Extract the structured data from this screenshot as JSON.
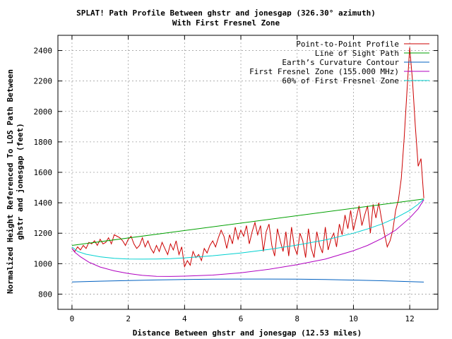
{
  "chart_data": {
    "type": "line",
    "title": "SPLAT! Path Profile Between ghstr and jonesgap (326.30° azimuth)",
    "subtitle": "With First Fresnel Zone",
    "xlabel": "Distance Between ghstr and jonesgap (12.53 miles)",
    "ylabel_line1": "Normalized Height Referenced To LOS Path Between",
    "ylabel_line2": "ghstr and jonesgap (feet)",
    "xlim": [
      -0.5,
      13.0
    ],
    "ylim": [
      700,
      2500
    ],
    "xticks": [
      0,
      2,
      4,
      6,
      8,
      10,
      12
    ],
    "yticks": [
      800,
      1000,
      1200,
      1400,
      1600,
      1800,
      2000,
      2200,
      2400
    ],
    "grid": true,
    "legend_position": "top-right",
    "series": [
      {
        "name": "Point-to-Point Profile",
        "color": "#cc0000",
        "x": [
          0,
          0.1,
          0.2,
          0.3,
          0.4,
          0.5,
          0.6,
          0.7,
          0.8,
          0.9,
          1.0,
          1.1,
          1.2,
          1.3,
          1.4,
          1.5,
          1.6,
          1.7,
          1.8,
          1.9,
          2.0,
          2.1,
          2.2,
          2.3,
          2.4,
          2.5,
          2.6,
          2.7,
          2.8,
          2.9,
          3.0,
          3.1,
          3.2,
          3.3,
          3.4,
          3.5,
          3.6,
          3.7,
          3.8,
          3.9,
          4.0,
          4.1,
          4.2,
          4.3,
          4.4,
          4.5,
          4.6,
          4.7,
          4.8,
          4.9,
          5.0,
          5.1,
          5.2,
          5.3,
          5.4,
          5.5,
          5.6,
          5.7,
          5.8,
          5.9,
          6.0,
          6.1,
          6.2,
          6.3,
          6.4,
          6.5,
          6.6,
          6.7,
          6.8,
          6.9,
          7.0,
          7.1,
          7.2,
          7.3,
          7.4,
          7.5,
          7.6,
          7.7,
          7.8,
          7.9,
          8.0,
          8.1,
          8.2,
          8.3,
          8.4,
          8.5,
          8.6,
          8.7,
          8.8,
          8.9,
          9.0,
          9.1,
          9.2,
          9.3,
          9.4,
          9.5,
          9.6,
          9.7,
          9.8,
          9.9,
          10.0,
          10.1,
          10.2,
          10.3,
          10.4,
          10.5,
          10.6,
          10.7,
          10.8,
          10.9,
          11.0,
          11.1,
          11.2,
          11.3,
          11.4,
          11.5,
          11.6,
          11.7,
          11.8,
          11.9,
          12.0,
          12.1,
          12.2,
          12.3,
          12.4,
          12.5
        ],
        "y": [
          1100,
          1080,
          1110,
          1090,
          1120,
          1100,
          1140,
          1130,
          1150,
          1120,
          1160,
          1130,
          1140,
          1170,
          1130,
          1190,
          1180,
          1170,
          1150,
          1120,
          1160,
          1180,
          1130,
          1100,
          1120,
          1170,
          1110,
          1150,
          1100,
          1070,
          1120,
          1080,
          1140,
          1100,
          1060,
          1130,
          1090,
          1150,
          1060,
          1110,
          980,
          1020,
          990,
          1080,
          1040,
          1060,
          1020,
          1100,
          1070,
          1120,
          1150,
          1110,
          1170,
          1220,
          1180,
          1100,
          1190,
          1130,
          1240,
          1160,
          1220,
          1180,
          1250,
          1130,
          1210,
          1270,
          1190,
          1250,
          1080,
          1210,
          1260,
          1120,
          1050,
          1230,
          1150,
          1080,
          1210,
          1050,
          1240,
          1110,
          1060,
          1200,
          1150,
          1040,
          1230,
          1100,
          1040,
          1210,
          1120,
          1070,
          1240,
          1090,
          1160,
          1200,
          1110,
          1260,
          1190,
          1320,
          1230,
          1350,
          1220,
          1300,
          1380,
          1250,
          1320,
          1380,
          1200,
          1390,
          1300,
          1400,
          1290,
          1200,
          1110,
          1150,
          1220,
          1350,
          1420,
          1560,
          1820,
          2130,
          2420,
          2200,
          1900,
          1640,
          1690,
          1430
        ]
      },
      {
        "name": "Line of Sight Path",
        "color": "#00a000",
        "x": [
          0,
          12.5
        ],
        "y": [
          1120,
          1425
        ]
      },
      {
        "name": "Earth’s Curvature Contour",
        "color": "#0060c0",
        "x": [
          0,
          1,
          2,
          3,
          4,
          5,
          6,
          7,
          8,
          9,
          10,
          11,
          12,
          12.5
        ],
        "y": [
          880,
          885,
          889,
          893,
          896,
          898,
          899,
          899,
          898,
          896,
          892,
          888,
          882,
          879
        ]
      },
      {
        "name": "First Fresnel Zone (155.000 MHz)",
        "color": "#b000c0",
        "x": [
          0,
          0.1,
          0.3,
          0.6,
          1,
          1.5,
          2,
          2.5,
          3,
          3.5,
          4,
          5,
          6,
          7,
          8,
          9,
          10,
          10.5,
          11,
          11.5,
          12,
          12.3,
          12.5
        ],
        "y": [
          1100,
          1075,
          1045,
          1010,
          978,
          953,
          935,
          923,
          917,
          916,
          918,
          925,
          940,
          963,
          993,
          1030,
          1085,
          1120,
          1165,
          1220,
          1300,
          1360,
          1420
        ]
      },
      {
        "name": "60% of First Fresnel Zone",
        "color": "#00d0d0",
        "x": [
          0,
          0.2,
          0.5,
          1,
          1.5,
          2,
          2.5,
          3,
          3.5,
          4,
          5,
          6,
          7,
          8,
          9,
          10,
          10.5,
          11,
          11.5,
          12,
          12.3,
          12.5
        ],
        "y": [
          1110,
          1080,
          1062,
          1045,
          1035,
          1031,
          1030,
          1031,
          1033,
          1038,
          1052,
          1070,
          1094,
          1122,
          1156,
          1200,
          1228,
          1260,
          1300,
          1350,
          1390,
          1425
        ]
      }
    ]
  }
}
